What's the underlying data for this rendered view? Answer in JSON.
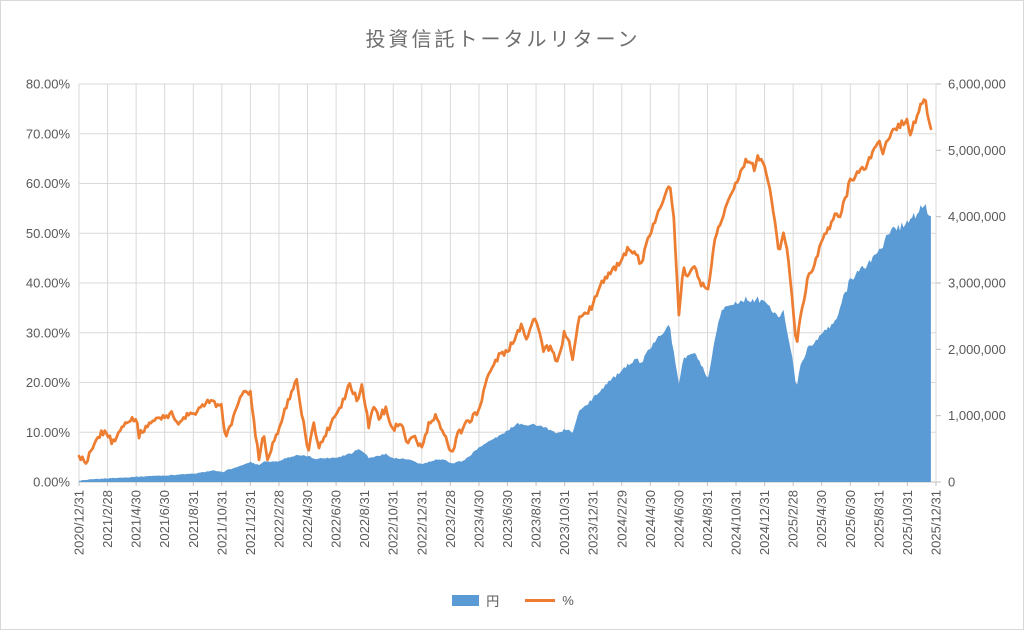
{
  "title": "投資信託トータルリターン",
  "legend": {
    "items": [
      {
        "label": "円",
        "type": "area",
        "color": "#5b9bd5"
      },
      {
        "label": "%",
        "type": "line",
        "color": "#ed7d31"
      }
    ]
  },
  "colors": {
    "area_fill": "#5b9bd5",
    "line_stroke": "#ed7d31",
    "gridline": "#d9d9d9",
    "axis_line": "#bfbfbf",
    "axis_text": "#595959",
    "title_text": "#6e6e6e",
    "background": "#ffffff"
  },
  "chart_data": {
    "type": "combo-area-line",
    "title": "投資信託トータルリターン",
    "x_unit": "months elapsed since 2020/12/31 (month-end data)",
    "x_range": [
      0,
      60
    ],
    "x_tick_interval_months": 2,
    "x_tick_labels": [
      "2020/12/31",
      "2021/2/28",
      "2021/4/30",
      "2021/6/30",
      "2021/8/31",
      "2021/10/31",
      "2021/12/31",
      "2022/2/28",
      "2022/4/30",
      "2022/6/30",
      "2022/8/31",
      "2022/10/31",
      "2022/12/31",
      "2023/2/28",
      "2023/4/30",
      "2023/6/30",
      "2023/8/31",
      "2023/10/31",
      "2023/12/31",
      "2024/2/29",
      "2024/4/30",
      "2024/6/30",
      "2024/8/31",
      "2024/10/31",
      "2024/12/31",
      "2025/2/28",
      "2025/4/30",
      "2025/6/30",
      "2025/8/31",
      "2025/10/31",
      "2025/12/31"
    ],
    "left_axis": {
      "series": "%",
      "min": 0,
      "max": 80,
      "step": 10,
      "tick_labels": [
        "0.00%",
        "10.00%",
        "20.00%",
        "30.00%",
        "40.00%",
        "50.00%",
        "60.00%",
        "70.00%",
        "80.00%"
      ]
    },
    "right_axis": {
      "series": "円",
      "min": 0,
      "max": 6000000,
      "step": 1000000,
      "tick_labels": [
        "0",
        "1,000,000",
        "2,000,000",
        "3,000,000",
        "4,000,000",
        "5,000,000",
        "6,000,000"
      ]
    },
    "grid": true,
    "legend_position": "bottom",
    "series": [
      {
        "name": "円",
        "type": "area",
        "axis": "right",
        "color": "#5b9bd5",
        "points": [
          [
            0,
            20000
          ],
          [
            1,
            40000
          ],
          [
            2,
            55000
          ],
          [
            3,
            65000
          ],
          [
            4,
            80000
          ],
          [
            5,
            90000
          ],
          [
            6,
            100000
          ],
          [
            7,
            110000
          ],
          [
            8,
            125000
          ],
          [
            9,
            160000
          ],
          [
            9.5,
            170000
          ],
          [
            10,
            150000
          ],
          [
            11,
            220000
          ],
          [
            12,
            300000
          ],
          [
            12.6,
            260000
          ],
          [
            13,
            310000
          ],
          [
            14,
            310000
          ],
          [
            14.5,
            360000
          ],
          [
            15.2,
            400000
          ],
          [
            16,
            390000
          ],
          [
            16.5,
            350000
          ],
          [
            17,
            360000
          ],
          [
            18,
            370000
          ],
          [
            19,
            430000
          ],
          [
            19.6,
            500000
          ],
          [
            20,
            440000
          ],
          [
            20.3,
            360000
          ],
          [
            21,
            400000
          ],
          [
            21.5,
            420000
          ],
          [
            22,
            360000
          ],
          [
            23,
            340000
          ],
          [
            24,
            270000
          ],
          [
            25,
            330000
          ],
          [
            25.5,
            350000
          ],
          [
            26.1,
            280000
          ],
          [
            27,
            330000
          ],
          [
            28,
            520000
          ],
          [
            29,
            650000
          ],
          [
            30,
            770000
          ],
          [
            30.7,
            890000
          ],
          [
            31.5,
            860000
          ],
          [
            32,
            870000
          ],
          [
            33,
            780000
          ],
          [
            33.5,
            730000
          ],
          [
            34,
            800000
          ],
          [
            34.6,
            750000
          ],
          [
            35,
            1070000
          ],
          [
            36,
            1260000
          ],
          [
            37,
            1500000
          ],
          [
            38,
            1670000
          ],
          [
            39,
            1870000
          ],
          [
            39.3,
            1780000
          ],
          [
            40,
            2020000
          ],
          [
            41,
            2300000
          ],
          [
            41.3,
            2400000
          ],
          [
            42,
            1480000
          ],
          [
            42.3,
            1850000
          ],
          [
            43,
            1950000
          ],
          [
            43.5,
            1800000
          ],
          [
            44,
            1520000
          ],
          [
            44.5,
            2100000
          ],
          [
            45,
            2620000
          ],
          [
            46,
            2700000
          ],
          [
            47,
            2760000
          ],
          [
            48,
            2730000
          ],
          [
            48.5,
            2600000
          ],
          [
            49,
            2460000
          ],
          [
            49.3,
            2600000
          ],
          [
            50,
            1820000
          ],
          [
            50.2,
            1400000
          ],
          [
            50.5,
            1750000
          ],
          [
            51,
            2000000
          ],
          [
            52,
            2230000
          ],
          [
            53,
            2430000
          ],
          [
            54,
            3080000
          ],
          [
            55,
            3230000
          ],
          [
            56,
            3510000
          ],
          [
            57,
            3810000
          ],
          [
            58,
            3910000
          ],
          [
            58.5,
            4000000
          ],
          [
            59,
            4160000
          ],
          [
            59.2,
            4190000
          ],
          [
            59.5,
            4050000
          ],
          [
            59.7,
            4010000
          ]
        ]
      },
      {
        "name": "%",
        "type": "line",
        "axis": "left",
        "color": "#ed7d31",
        "points": [
          [
            0,
            5.2
          ],
          [
            0.5,
            3.6
          ],
          [
            1,
            6.9
          ],
          [
            1.5,
            9.8
          ],
          [
            2,
            10.0
          ],
          [
            2.3,
            7.6
          ],
          [
            3,
            10.9
          ],
          [
            3.5,
            12.8
          ],
          [
            4,
            12.6
          ],
          [
            4.2,
            9.6
          ],
          [
            5,
            11.9
          ],
          [
            6,
            13.6
          ],
          [
            6.5,
            13.8
          ],
          [
            7,
            11.3
          ],
          [
            7.5,
            13.2
          ],
          [
            8,
            13.6
          ],
          [
            9,
            16.3
          ],
          [
            9.5,
            15.5
          ],
          [
            10,
            15.0
          ],
          [
            10.3,
            8.5
          ],
          [
            10.7,
            12.0
          ],
          [
            11,
            14.7
          ],
          [
            11.5,
            18.3
          ],
          [
            12,
            17.7
          ],
          [
            12.6,
            4.8
          ],
          [
            12.9,
            9.8
          ],
          [
            13.2,
            4.5
          ],
          [
            13.6,
            8.0
          ],
          [
            14,
            10.5
          ],
          [
            14.5,
            15.0
          ],
          [
            15.2,
            20.7
          ],
          [
            15.6,
            13.3
          ],
          [
            16.1,
            5.5
          ],
          [
            16.4,
            12.5
          ],
          [
            16.8,
            7.0
          ],
          [
            17.3,
            10.0
          ],
          [
            18,
            14.0
          ],
          [
            18.5,
            16.5
          ],
          [
            19,
            20.0
          ],
          [
            19.5,
            16.0
          ],
          [
            19.8,
            19.8
          ],
          [
            20.3,
            10.9
          ],
          [
            20.6,
            15.7
          ],
          [
            21,
            13.0
          ],
          [
            21.5,
            14.5
          ],
          [
            22,
            10.5
          ],
          [
            22.5,
            12.0
          ],
          [
            23,
            7.5
          ],
          [
            23.5,
            9.0
          ],
          [
            24,
            6.9
          ],
          [
            24.5,
            11.5
          ],
          [
            25,
            12.9
          ],
          [
            25.5,
            10.5
          ],
          [
            26.1,
            5.8
          ],
          [
            26.5,
            9.5
          ],
          [
            27,
            11.5
          ],
          [
            28,
            14.3
          ],
          [
            28.5,
            20.3
          ],
          [
            29,
            23.5
          ],
          [
            29.5,
            26.0
          ],
          [
            30,
            26.0
          ],
          [
            30.5,
            29.0
          ],
          [
            31,
            32.0
          ],
          [
            31.3,
            29.0
          ],
          [
            32,
            33.4
          ],
          [
            32.5,
            26.3
          ],
          [
            33,
            27.0
          ],
          [
            33.5,
            23.9
          ],
          [
            34,
            30.4
          ],
          [
            34.3,
            28.0
          ],
          [
            34.6,
            24.7
          ],
          [
            35,
            33.0
          ],
          [
            36,
            35.4
          ],
          [
            36.5,
            40.0
          ],
          [
            37,
            41.5
          ],
          [
            38,
            44.4
          ],
          [
            38.5,
            47.0
          ],
          [
            39,
            46.0
          ],
          [
            39.3,
            43.5
          ],
          [
            40,
            50.0
          ],
          [
            40.5,
            53.5
          ],
          [
            41,
            58.0
          ],
          [
            41.3,
            59.9
          ],
          [
            41.6,
            55.0
          ],
          [
            42,
            33.6
          ],
          [
            42.3,
            43.0
          ],
          [
            42.6,
            41.0
          ],
          [
            43,
            43.5
          ],
          [
            43.5,
            40.0
          ],
          [
            44,
            37.8
          ],
          [
            44.5,
            48.0
          ],
          [
            45,
            53.0
          ],
          [
            45.5,
            57.0
          ],
          [
            46,
            60.0
          ],
          [
            46.5,
            63.5
          ],
          [
            47,
            65.1
          ],
          [
            47.3,
            63.0
          ],
          [
            47.6,
            65.5
          ],
          [
            48,
            63.5
          ],
          [
            48.5,
            57.0
          ],
          [
            49,
            45.8
          ],
          [
            49.3,
            50.0
          ],
          [
            49.6,
            47.0
          ],
          [
            50,
            35.0
          ],
          [
            50.2,
            27.3
          ],
          [
            50.5,
            33.0
          ],
          [
            51,
            40.4
          ],
          [
            51.5,
            44.0
          ],
          [
            52,
            48.4
          ],
          [
            52.5,
            51.0
          ],
          [
            53,
            54.0
          ],
          [
            53.3,
            53.0
          ],
          [
            54,
            61.0
          ],
          [
            54.5,
            62.0
          ],
          [
            55,
            62.9
          ],
          [
            55.5,
            66.0
          ],
          [
            56,
            68.9
          ],
          [
            56.3,
            66.5
          ],
          [
            57,
            70.5
          ],
          [
            57.5,
            72.0
          ],
          [
            58,
            72.6
          ],
          [
            58.2,
            69.5
          ],
          [
            58.7,
            74.0
          ],
          [
            59,
            76.2
          ],
          [
            59.2,
            77.4
          ],
          [
            59.5,
            73.0
          ],
          [
            59.7,
            71.0
          ]
        ]
      }
    ]
  }
}
